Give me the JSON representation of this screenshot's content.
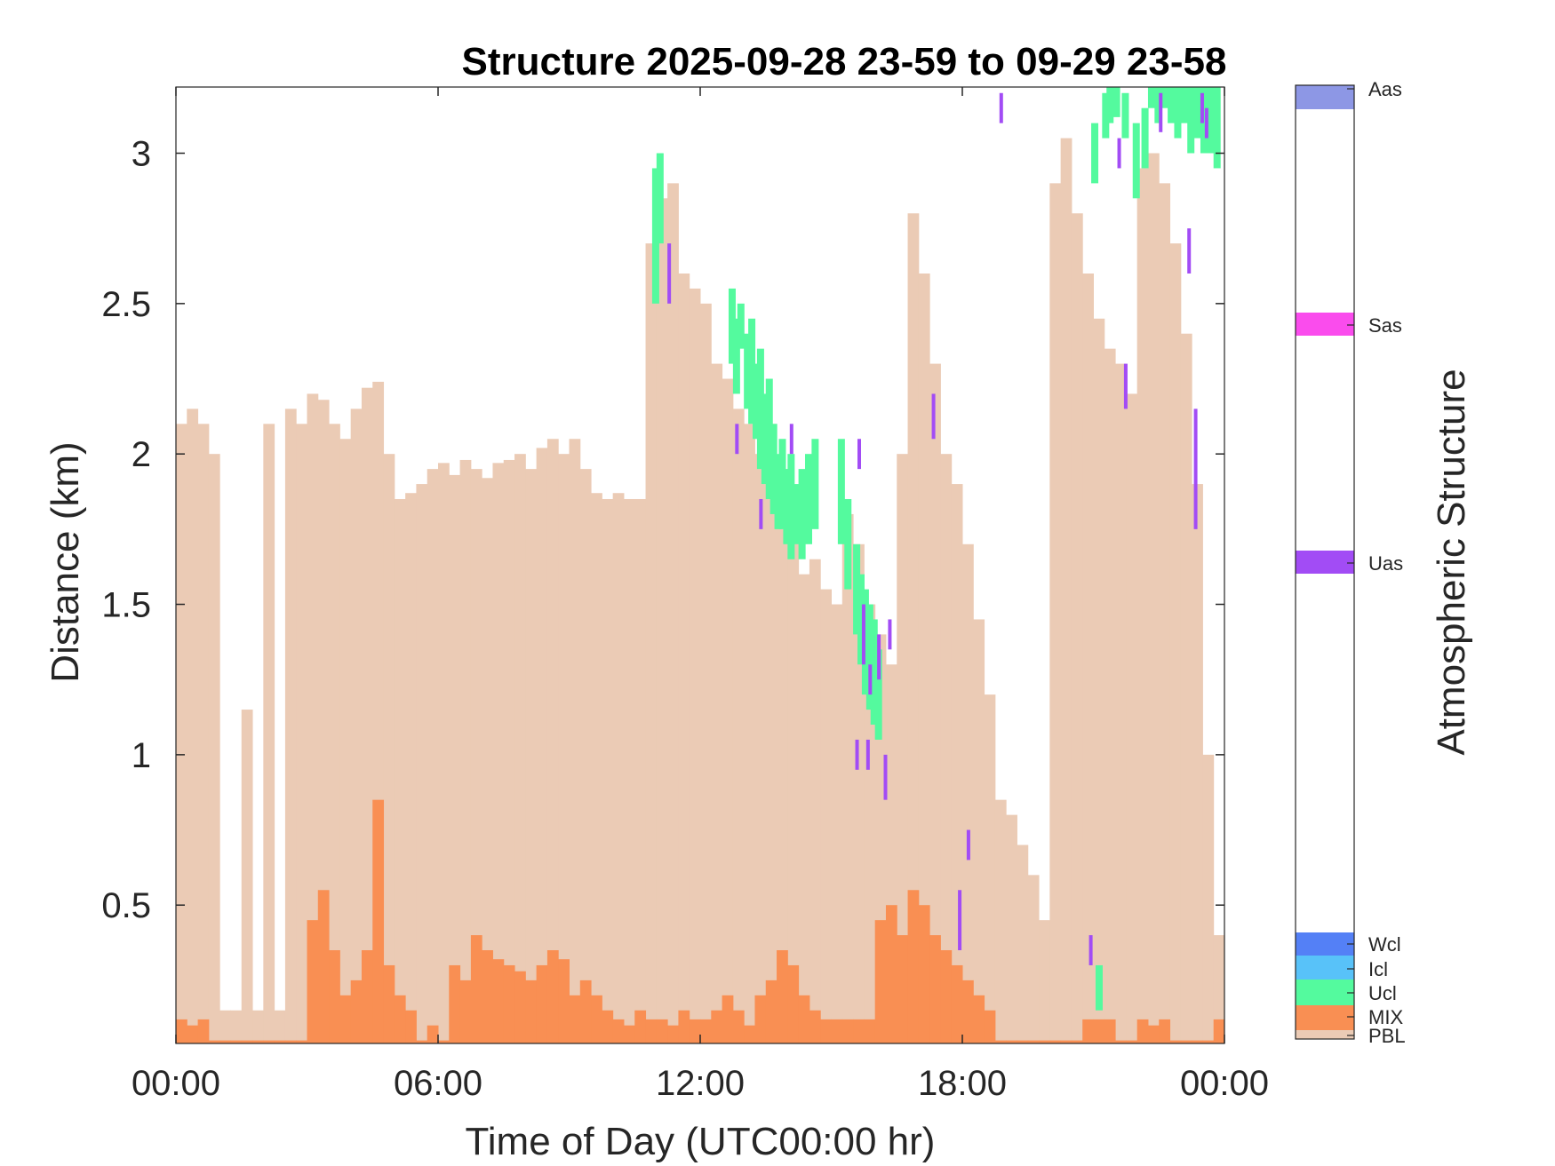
{
  "chart_data": {
    "type": "heatmap",
    "title": "Structure 2025-09-28 23-59 to 09-29 23-58",
    "xlabel": "Time of Day (UTC00:00 hr)",
    "ylabel": "Distance (km)",
    "xlim": [
      0,
      24
    ],
    "ylim": [
      0.04,
      3.22
    ],
    "x_tick_values": [
      0,
      6,
      12,
      18,
      24
    ],
    "x_tick_labels": [
      "00:00",
      "06:00",
      "12:00",
      "18:00",
      "00:00"
    ],
    "y_tick_values": [
      0.5,
      1,
      1.5,
      2,
      2.5,
      3
    ],
    "y_tick_labels": [
      "0.5",
      "1",
      "1.5",
      "2",
      "2.5",
      "3"
    ],
    "grid": false,
    "colorbar": {
      "label": "Atmospheric Structure",
      "categories": [
        {
          "name": "PBL",
          "color": "#EBCBB5"
        },
        {
          "name": "MIX",
          "color": "#F98F53"
        },
        {
          "name": "Ucl",
          "color": "#54FA9E"
        },
        {
          "name": "Icl",
          "color": "#58C2F9"
        },
        {
          "name": "Wcl",
          "color": "#5480F6"
        },
        {
          "name": "Uas",
          "color": "#A24CF5"
        },
        {
          "name": "Sas",
          "color": "#FA4CED"
        },
        {
          "name": "Aas",
          "color": "#8D97E5"
        }
      ]
    },
    "series": [
      {
        "name": "PBL",
        "x_hours": [
          0,
          0.25,
          0.5,
          0.75,
          1.0,
          1.25,
          1.5,
          1.75,
          2.0,
          2.25,
          2.5,
          2.75,
          3.0,
          3.25,
          3.5,
          3.75,
          4.0,
          4.25,
          4.5,
          4.75,
          5.0,
          5.25,
          5.5,
          5.75,
          6.0,
          6.25,
          6.5,
          6.75,
          7.0,
          7.25,
          7.5,
          7.75,
          8.0,
          8.25,
          8.5,
          8.75,
          9.0,
          9.25,
          9.5,
          9.75,
          10.0,
          10.25,
          10.5,
          10.75,
          11.0,
          11.25,
          11.5,
          11.75,
          12.0,
          12.25,
          12.5,
          12.75,
          13.0,
          13.25,
          13.5,
          13.75,
          14.0,
          14.25,
          14.5,
          14.75,
          15.0,
          15.25,
          15.5,
          15.75,
          16.0,
          16.25,
          16.5,
          16.75,
          17.0,
          17.25,
          17.5,
          17.75,
          18.0,
          18.25,
          18.5,
          18.75,
          19.0,
          19.25,
          19.5,
          19.75,
          20.0,
          20.25,
          20.5,
          20.75,
          21.0,
          21.25,
          21.5,
          21.75,
          22.0,
          22.25,
          22.5,
          22.75,
          23.0,
          23.25,
          23.5,
          23.75
        ],
        "top_km": [
          2.1,
          2.15,
          2.1,
          2.0,
          0.15,
          0.15,
          1.15,
          0.15,
          2.1,
          0.15,
          2.15,
          2.1,
          2.2,
          2.18,
          2.1,
          2.05,
          2.15,
          2.22,
          2.24,
          2.0,
          1.85,
          1.87,
          1.9,
          1.95,
          1.97,
          1.93,
          1.98,
          1.95,
          1.92,
          1.97,
          1.98,
          2.0,
          1.95,
          2.02,
          2.05,
          2.0,
          2.05,
          1.95,
          1.87,
          1.85,
          1.87,
          1.85,
          1.85,
          2.7,
          2.85,
          2.9,
          2.6,
          2.55,
          2.5,
          2.3,
          2.25,
          2.15,
          2.1,
          2.0,
          2.1,
          1.95,
          1.75,
          1.6,
          1.65,
          1.55,
          1.5,
          1.8,
          1.7,
          1.5,
          1.4,
          1.3,
          2.0,
          2.8,
          2.6,
          2.3,
          2.0,
          1.9,
          1.7,
          1.45,
          1.2,
          0.85,
          0.8,
          0.7,
          0.6,
          0.45,
          2.9,
          3.05,
          2.8,
          2.6,
          2.45,
          2.35,
          2.3,
          2.2,
          2.95,
          3.0,
          2.9,
          2.7,
          2.4,
          1.9,
          1.0,
          0.4
        ]
      },
      {
        "name": "MIX",
        "x_hours": [
          0,
          0.25,
          0.5,
          0.75,
          1.0,
          1.25,
          1.5,
          1.75,
          2.0,
          2.25,
          2.5,
          2.75,
          3.0,
          3.25,
          3.5,
          3.75,
          4.0,
          4.25,
          4.5,
          4.75,
          5.0,
          5.25,
          5.5,
          5.75,
          6.0,
          6.25,
          6.5,
          6.75,
          7.0,
          7.25,
          7.5,
          7.75,
          8.0,
          8.25,
          8.5,
          8.75,
          9.0,
          9.25,
          9.5,
          9.75,
          10.0,
          10.25,
          10.5,
          10.75,
          11.0,
          11.25,
          11.5,
          11.75,
          12.0,
          12.25,
          12.5,
          12.75,
          13.0,
          13.25,
          13.5,
          13.75,
          14.0,
          14.25,
          14.5,
          14.75,
          15.0,
          15.25,
          15.5,
          15.75,
          16.0,
          16.25,
          16.5,
          16.75,
          17.0,
          17.25,
          17.5,
          17.75,
          18.0,
          18.25,
          18.5,
          18.75,
          19.0,
          19.25,
          19.5,
          19.75,
          20.0,
          20.25,
          20.5,
          20.75,
          21.0,
          21.25,
          21.5,
          21.75,
          22.0,
          22.25,
          22.5,
          22.75,
          23.0,
          23.25,
          23.5,
          23.75
        ],
        "top_km": [
          0.12,
          0.1,
          0.12,
          0.05,
          0.05,
          0.05,
          0.05,
          0.05,
          0.05,
          0.05,
          0.05,
          0.05,
          0.45,
          0.55,
          0.35,
          0.2,
          0.25,
          0.35,
          0.85,
          0.3,
          0.2,
          0.15,
          0.05,
          0.1,
          0.05,
          0.3,
          0.25,
          0.4,
          0.35,
          0.32,
          0.3,
          0.28,
          0.25,
          0.3,
          0.35,
          0.32,
          0.2,
          0.25,
          0.2,
          0.15,
          0.12,
          0.1,
          0.15,
          0.12,
          0.12,
          0.1,
          0.15,
          0.12,
          0.12,
          0.15,
          0.2,
          0.15,
          0.1,
          0.2,
          0.25,
          0.35,
          0.3,
          0.2,
          0.15,
          0.12,
          0.12,
          0.12,
          0.12,
          0.12,
          0.45,
          0.5,
          0.4,
          0.55,
          0.5,
          0.4,
          0.35,
          0.3,
          0.25,
          0.2,
          0.15,
          0.05,
          0.05,
          0.05,
          0.05,
          0.05,
          0.05,
          0.05,
          0.05,
          0.12,
          0.12,
          0.12,
          0.05,
          0.05,
          0.12,
          0.1,
          0.12,
          0.05,
          0.05,
          0.05,
          0.05,
          0.12
        ]
      },
      {
        "name": "Ucl",
        "segments": [
          [
            10.9,
            2.5,
            2.95
          ],
          [
            11.0,
            2.7,
            3.0
          ],
          [
            12.65,
            2.3,
            2.55
          ],
          [
            12.75,
            2.2,
            2.45
          ],
          [
            12.85,
            2.35,
            2.5
          ],
          [
            13.0,
            2.15,
            2.4
          ],
          [
            13.1,
            2.1,
            2.45
          ],
          [
            13.2,
            2.05,
            2.3
          ],
          [
            13.3,
            1.95,
            2.35
          ],
          [
            13.4,
            1.9,
            2.2
          ],
          [
            13.5,
            1.85,
            2.25
          ],
          [
            13.6,
            1.8,
            2.1
          ],
          [
            13.7,
            1.75,
            2.0
          ],
          [
            13.8,
            1.75,
            2.05
          ],
          [
            13.9,
            1.7,
            1.95
          ],
          [
            14.0,
            1.65,
            2.0
          ],
          [
            14.1,
            1.7,
            1.9
          ],
          [
            14.25,
            1.65,
            1.95
          ],
          [
            14.4,
            1.7,
            2.0
          ],
          [
            14.55,
            1.75,
            2.05
          ],
          [
            15.15,
            1.7,
            2.05
          ],
          [
            15.3,
            1.55,
            1.85
          ],
          [
            15.5,
            1.4,
            1.7
          ],
          [
            15.6,
            1.3,
            1.6
          ],
          [
            15.7,
            1.2,
            1.55
          ],
          [
            15.8,
            1.15,
            1.5
          ],
          [
            15.9,
            1.1,
            1.45
          ],
          [
            16.0,
            1.05,
            1.35
          ],
          [
            21.05,
            0.15,
            0.3
          ],
          [
            20.95,
            2.9,
            3.1
          ],
          [
            21.2,
            3.05,
            3.2
          ],
          [
            21.3,
            3.1,
            3.22
          ],
          [
            21.45,
            3.12,
            3.22
          ],
          [
            21.65,
            3.05,
            3.2
          ],
          [
            21.9,
            2.85,
            3.1
          ],
          [
            22.1,
            2.95,
            3.15
          ],
          [
            22.25,
            3.15,
            3.22
          ],
          [
            22.4,
            3.1,
            3.22
          ],
          [
            22.55,
            3.15,
            3.22
          ],
          [
            22.7,
            3.1,
            3.22
          ],
          [
            22.85,
            3.05,
            3.22
          ],
          [
            23.0,
            3.1,
            3.22
          ],
          [
            23.15,
            3.0,
            3.22
          ],
          [
            23.3,
            3.05,
            3.22
          ],
          [
            23.45,
            3.0,
            3.22
          ],
          [
            23.6,
            3.0,
            3.22
          ],
          [
            23.75,
            2.95,
            3.22
          ]
        ]
      },
      {
        "name": "Uas",
        "segments": [
          [
            11.25,
            2.5,
            2.7
          ],
          [
            12.8,
            2.0,
            2.1
          ],
          [
            13.35,
            1.75,
            1.85
          ],
          [
            14.05,
            2.0,
            2.1
          ],
          [
            15.6,
            1.95,
            2.05
          ],
          [
            15.7,
            1.3,
            1.5
          ],
          [
            15.85,
            1.2,
            1.3
          ],
          [
            16.05,
            1.25,
            1.4
          ],
          [
            15.55,
            0.95,
            1.05
          ],
          [
            15.8,
            0.95,
            1.05
          ],
          [
            16.2,
            0.85,
            1.0
          ],
          [
            16.3,
            1.35,
            1.45
          ],
          [
            17.3,
            2.05,
            2.2
          ],
          [
            18.1,
            0.65,
            0.75
          ],
          [
            17.9,
            0.35,
            0.55
          ],
          [
            18.85,
            3.1,
            3.2
          ],
          [
            20.9,
            0.3,
            0.4
          ],
          [
            21.55,
            2.95,
            3.05
          ],
          [
            21.7,
            2.15,
            2.3
          ],
          [
            22.5,
            3.07,
            3.2
          ],
          [
            23.15,
            2.6,
            2.75
          ],
          [
            23.3,
            1.75,
            2.15
          ],
          [
            23.45,
            3.1,
            3.2
          ],
          [
            23.55,
            3.05,
            3.15
          ]
        ]
      }
    ]
  }
}
